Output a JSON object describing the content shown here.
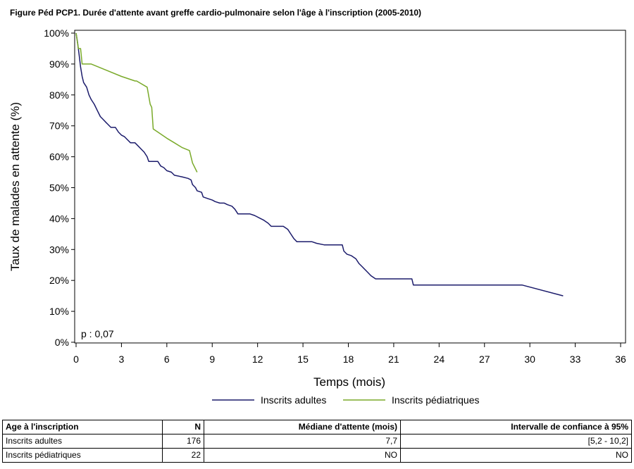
{
  "chart_data": {
    "type": "line",
    "title": "Figure Péd PCP1. Durée d'attente avant greffe cardio-pulmonaire selon l'âge à l'inscription (2005-2010)",
    "xlabel": "Temps (mois)",
    "ylabel": "Taux de malades en attente (%)",
    "xlim": [
      0,
      36
    ],
    "ylim": [
      0,
      100
    ],
    "x_ticks": [
      0,
      3,
      6,
      9,
      12,
      15,
      18,
      21,
      24,
      27,
      30,
      33,
      36
    ],
    "y_ticks": [
      "0%",
      "10%",
      "20%",
      "30%",
      "40%",
      "50%",
      "60%",
      "70%",
      "80%",
      "90%",
      "100%"
    ],
    "annotation": "p : 0,07",
    "legend_position": "bottom",
    "series": [
      {
        "name": "Inscrits adultes",
        "color": "#1b1b6b",
        "points": [
          [
            0,
            100
          ],
          [
            0.1,
            97
          ],
          [
            0.2,
            93
          ],
          [
            0.3,
            89
          ],
          [
            0.4,
            86
          ],
          [
            0.5,
            84
          ],
          [
            0.7,
            82.5
          ],
          [
            0.85,
            80
          ],
          [
            1,
            78.5
          ],
          [
            1.2,
            77
          ],
          [
            1.4,
            75
          ],
          [
            1.6,
            73
          ],
          [
            1.8,
            72
          ],
          [
            2,
            71
          ],
          [
            2.1,
            70.5
          ],
          [
            2.3,
            69.5
          ],
          [
            2.6,
            69.5
          ],
          [
            2.8,
            68
          ],
          [
            3,
            67
          ],
          [
            3.2,
            66.5
          ],
          [
            3.4,
            65.5
          ],
          [
            3.6,
            64.5
          ],
          [
            3.9,
            64.5
          ],
          [
            4.1,
            63.5
          ],
          [
            4.3,
            62.5
          ],
          [
            4.5,
            61.5
          ],
          [
            4.7,
            60
          ],
          [
            4.8,
            58.5
          ],
          [
            5.4,
            58.5
          ],
          [
            5.6,
            57
          ],
          [
            5.8,
            56.5
          ],
          [
            6,
            55.5
          ],
          [
            6.3,
            55
          ],
          [
            6.5,
            54
          ],
          [
            7,
            53.5
          ],
          [
            7.4,
            53
          ],
          [
            7.6,
            52.5
          ],
          [
            7.7,
            51
          ],
          [
            7.9,
            50
          ],
          [
            8,
            49
          ],
          [
            8.3,
            48.5
          ],
          [
            8.4,
            47
          ],
          [
            8.7,
            46.5
          ],
          [
            9,
            46
          ],
          [
            9.2,
            45.5
          ],
          [
            9.5,
            45
          ],
          [
            9.8,
            45
          ],
          [
            10,
            44.5
          ],
          [
            10.3,
            44
          ],
          [
            10.5,
            43
          ],
          [
            10.7,
            41.5
          ],
          [
            11.5,
            41.5
          ],
          [
            11.8,
            41
          ],
          [
            12.2,
            40
          ],
          [
            12.4,
            39.5
          ],
          [
            12.7,
            38.5
          ],
          [
            12.9,
            37.5
          ],
          [
            13.7,
            37.5
          ],
          [
            14,
            36.5
          ],
          [
            14.2,
            35
          ],
          [
            14.4,
            33.5
          ],
          [
            14.6,
            32.5
          ],
          [
            15.6,
            32.5
          ],
          [
            15.9,
            32
          ],
          [
            16.4,
            31.5
          ],
          [
            17.6,
            31.5
          ],
          [
            17.7,
            29.5
          ],
          [
            17.9,
            28.5
          ],
          [
            18.2,
            28
          ],
          [
            18.5,
            27
          ],
          [
            18.7,
            25.5
          ],
          [
            18.9,
            24.5
          ],
          [
            19.2,
            23
          ],
          [
            19.5,
            21.5
          ],
          [
            19.8,
            20.5
          ],
          [
            22.2,
            20.5
          ],
          [
            22.3,
            18.5
          ],
          [
            29.5,
            18.5
          ],
          [
            32.2,
            15
          ]
        ]
      },
      {
        "name": "Inscrits pédiatriques",
        "color": "#7aaa2a",
        "points": [
          [
            0,
            100
          ],
          [
            0.15,
            95
          ],
          [
            0.3,
            95
          ],
          [
            0.4,
            90
          ],
          [
            1,
            90
          ],
          [
            2,
            88
          ],
          [
            3,
            86
          ],
          [
            3.9,
            84.5
          ],
          [
            4,
            84.5
          ],
          [
            4.7,
            82.5
          ],
          [
            4.9,
            77
          ],
          [
            5,
            76
          ],
          [
            5.1,
            69
          ],
          [
            5.4,
            68
          ],
          [
            6,
            66
          ],
          [
            6.5,
            64.5
          ],
          [
            7,
            63
          ],
          [
            7.5,
            62
          ],
          [
            7.7,
            58
          ],
          [
            8,
            55
          ]
        ]
      }
    ]
  },
  "stats_table": {
    "headers": [
      "Age à l'inscription",
      "N",
      "Médiane d'attente (mois)",
      "Intervalle de confiance à 95%"
    ],
    "rows": [
      [
        "Inscrits adultes",
        "176",
        "7,7",
        "[5,2 - 10,2]"
      ],
      [
        "Inscrits pédiatriques",
        "22",
        "NO",
        "NO"
      ]
    ]
  }
}
